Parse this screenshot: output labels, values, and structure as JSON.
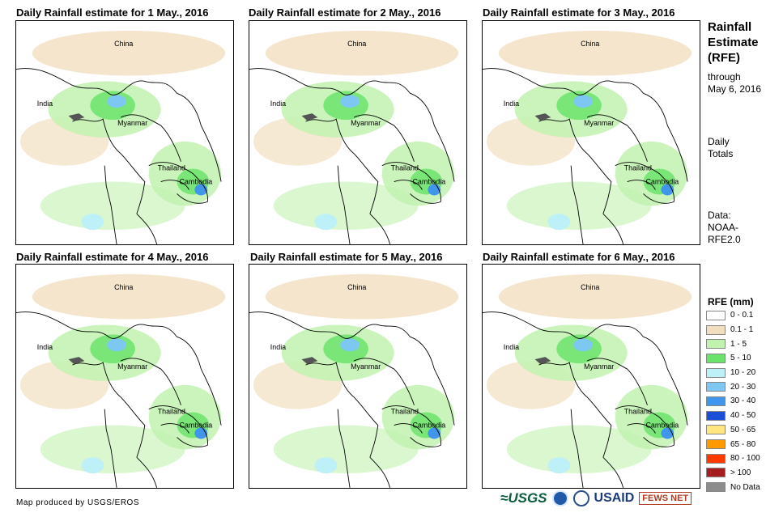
{
  "panels": [
    {
      "title": "Daily Rainfall estimate for 1 May., 2016",
      "china": "China",
      "india": "India",
      "myanmar": "Myanmar",
      "thailand": "Thailand",
      "cambodia": "Cambodia"
    },
    {
      "title": "Daily Rainfall estimate for 2 May., 2016",
      "china": "China",
      "india": "India",
      "myanmar": "Myanmar",
      "thailand": "Thailand",
      "cambodia": "Cambodia"
    },
    {
      "title": "Daily Rainfall estimate for 3 May., 2016",
      "china": "China",
      "india": "India",
      "myanmar": "Myanmar",
      "thailand": "Thailand",
      "cambodia": "Cambodia"
    },
    {
      "title": "Daily Rainfall estimate for 4 May., 2016",
      "china": "China",
      "india": "India",
      "myanmar": "Myanmar",
      "thailand": "Thailand",
      "cambodia": "Cambodia"
    },
    {
      "title": "Daily Rainfall estimate for 5 May., 2016",
      "china": "China",
      "india": "India",
      "myanmar": "Myanmar",
      "thailand": "Thailand",
      "cambodia": "Cambodia"
    },
    {
      "title": "Daily Rainfall estimate for 6 May., 2016",
      "china": "China",
      "india": "India",
      "myanmar": "Myanmar",
      "thailand": "Thailand",
      "cambodia": "Cambodia"
    }
  ],
  "side": {
    "title_line1": "Rainfall",
    "title_line2": "Estimate",
    "title_line3": "(RFE)",
    "through": "through",
    "date": "May 6, 2016",
    "daily": "Daily",
    "totals": "Totals",
    "data_label": "Data:",
    "data_src1": "NOAA-",
    "data_src2": "RFE2.0"
  },
  "legend": {
    "title": "RFE (mm)",
    "items": [
      {
        "label": "0 - 0.1",
        "color": "#ffffff"
      },
      {
        "label": "0.1 - 1",
        "color": "#f2dfc0"
      },
      {
        "label": "1 - 5",
        "color": "#c2f2b0"
      },
      {
        "label": "5 - 10",
        "color": "#6be36b"
      },
      {
        "label": "10 - 20",
        "color": "#bdf0f7"
      },
      {
        "label": "20 - 30",
        "color": "#7cc8f2"
      },
      {
        "label": "30 - 40",
        "color": "#3f96eb"
      },
      {
        "label": "40 - 50",
        "color": "#1a50d6"
      },
      {
        "label": "50 - 65",
        "color": "#ffe680"
      },
      {
        "label": "65 - 80",
        "color": "#ff9900"
      },
      {
        "label": "80 - 100",
        "color": "#ff3a00"
      },
      {
        "label": "> 100",
        "color": "#a51d1d"
      },
      {
        "label": "No Data",
        "color": "#8c8c8c"
      }
    ]
  },
  "footer": {
    "credit": "Map produced by USGS/EROS",
    "logos": {
      "usgs": "≈USGS",
      "usaid": "USAID",
      "fews": "FEWS NET"
    }
  }
}
